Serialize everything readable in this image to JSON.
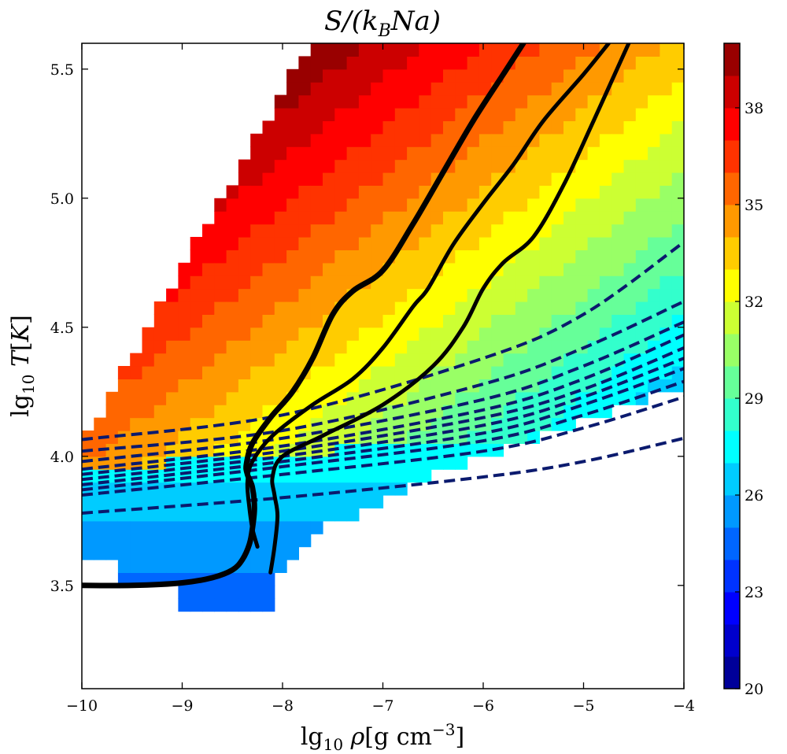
{
  "chart_data": {
    "type": "heatmap",
    "title": "S/(k_B Na)",
    "xlabel": "lg10 ρ[g  cm−3]",
    "ylabel": "lg10 T[K]",
    "xlim": [
      -10,
      -4
    ],
    "ylim": [
      3.1,
      5.6
    ],
    "x_ticks": [
      -10,
      -9,
      -8,
      -7,
      -6,
      -5,
      -4
    ],
    "x_tick_labels": [
      "−10",
      "−9",
      "−8",
      "−7",
      "−6",
      "−5",
      "−4"
    ],
    "y_ticks": [
      3.5,
      4.0,
      4.5,
      5.0,
      5.5
    ],
    "y_tick_labels": [
      "3.5",
      "4.0",
      "4.5",
      "5.0",
      "5.5"
    ],
    "colorbar": {
      "label": "",
      "min": 20,
      "max": 40,
      "levels": 20,
      "ticks": [
        20,
        23,
        26,
        29,
        32,
        35,
        38
      ],
      "tick_labels": [
        "20",
        "23",
        "26",
        "29",
        "32",
        "35",
        "38"
      ],
      "colormap": "jet"
    },
    "grid": {
      "x_range": [
        -10,
        -4
      ],
      "y_range": [
        3.1,
        5.6
      ],
      "nx": 50,
      "ny": 50,
      "value_range": [
        20,
        40
      ],
      "description_of_fill": "entropy increases with temperature and decreases with density; filled band bounded above by lg T ≈ 4.05 + 0.68·(lgρ+10) and below by the ionization boundary"
    },
    "series": [
      {
        "style": "solid",
        "color": "#000000",
        "x": [
          -10.0,
          -9.5,
          -9.0,
          -8.7,
          -8.5,
          -8.4,
          -8.33,
          -8.3,
          -8.28,
          -8.3,
          -8.35,
          -8.36,
          -8.3,
          -8.12,
          -7.9,
          -7.7,
          -7.5,
          -7.3,
          -7.0,
          -6.7,
          -6.4,
          -6.1,
          -5.8,
          -5.6
        ],
        "y": [
          3.5,
          3.5,
          3.51,
          3.53,
          3.56,
          3.6,
          3.66,
          3.72,
          3.8,
          3.88,
          3.93,
          3.97,
          4.05,
          4.15,
          4.25,
          4.38,
          4.55,
          4.64,
          4.72,
          4.9,
          5.1,
          5.3,
          5.48,
          5.6
        ]
      },
      {
        "style": "solid",
        "color": "#000000",
        "x": [
          -8.25,
          -8.3,
          -8.33,
          -8.35,
          -8.3,
          -8.1,
          -7.7,
          -7.3,
          -7.0,
          -6.7,
          -6.55,
          -6.3,
          -6.0,
          -5.7,
          -5.4,
          -5.0,
          -4.75
        ],
        "y": [
          3.65,
          3.72,
          3.8,
          3.9,
          3.98,
          4.08,
          4.2,
          4.3,
          4.42,
          4.58,
          4.65,
          4.82,
          4.98,
          5.13,
          5.3,
          5.48,
          5.6
        ]
      },
      {
        "style": "solid",
        "color": "#000000",
        "x": [
          -8.12,
          -8.08,
          -8.05,
          -8.08,
          -8.1,
          -8.0,
          -7.6,
          -7.0,
          -6.5,
          -6.2,
          -6.0,
          -5.8,
          -5.5,
          -5.2,
          -4.9,
          -4.55
        ],
        "y": [
          3.55,
          3.65,
          3.77,
          3.85,
          3.92,
          4.0,
          4.08,
          4.2,
          4.35,
          4.5,
          4.65,
          4.75,
          4.85,
          5.05,
          5.3,
          5.6
        ]
      },
      {
        "style": "dashed",
        "color": "#0b1a6e",
        "x": [
          -10,
          -8,
          -6,
          -5,
          -4
        ],
        "y": [
          4.065,
          4.16,
          4.38,
          4.55,
          4.83
        ]
      },
      {
        "style": "dashed",
        "color": "#0b1a6e",
        "x": [
          -10,
          -8,
          -6,
          -5,
          -4
        ],
        "y": [
          4.02,
          4.1,
          4.28,
          4.42,
          4.6
        ]
      },
      {
        "style": "dashed",
        "color": "#0b1a6e",
        "x": [
          -10,
          -8,
          -6,
          -5,
          -4
        ],
        "y": [
          3.98,
          4.07,
          4.22,
          4.35,
          4.52
        ]
      },
      {
        "style": "dashed",
        "color": "#0b1a6e",
        "x": [
          -10,
          -8,
          -6,
          -5,
          -4
        ],
        "y": [
          3.95,
          4.04,
          4.18,
          4.3,
          4.47
        ]
      },
      {
        "style": "dashed",
        "color": "#0b1a6e",
        "x": [
          -10,
          -8,
          -6,
          -5,
          -4
        ],
        "y": [
          3.93,
          4.02,
          4.15,
          4.26,
          4.42
        ]
      },
      {
        "style": "dashed",
        "color": "#0b1a6e",
        "x": [
          -10,
          -8,
          -6,
          -5,
          -4
        ],
        "y": [
          3.91,
          4.0,
          4.12,
          4.23,
          4.38
        ]
      },
      {
        "style": "dashed",
        "color": "#0b1a6e",
        "x": [
          -10,
          -8,
          -6,
          -5,
          -4
        ],
        "y": [
          3.89,
          3.98,
          4.09,
          4.2,
          4.34
        ]
      },
      {
        "style": "dashed",
        "color": "#0b1a6e",
        "x": [
          -10,
          -8,
          -6,
          -5,
          -4
        ],
        "y": [
          3.87,
          3.96,
          4.06,
          4.16,
          4.29
        ]
      },
      {
        "style": "dashed",
        "color": "#0b1a6e",
        "x": [
          -10,
          -8,
          -6,
          -5,
          -4
        ],
        "y": [
          3.85,
          3.93,
          4.02,
          4.11,
          4.23
        ]
      },
      {
        "style": "dashed",
        "color": "#0b1a6e",
        "x": [
          -10,
          -8,
          -6,
          -5,
          -4
        ],
        "y": [
          3.78,
          3.84,
          3.92,
          3.98,
          4.07
        ]
      }
    ]
  }
}
